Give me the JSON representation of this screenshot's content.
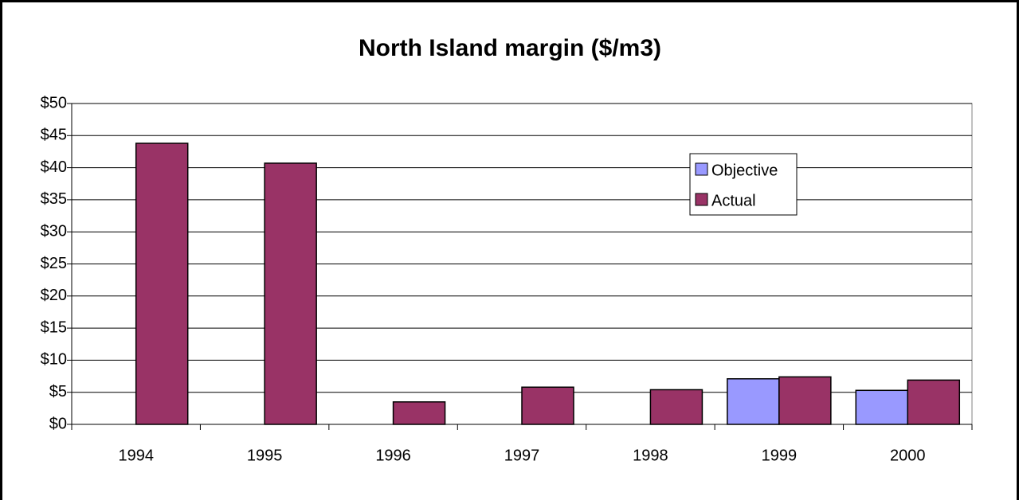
{
  "chart_data": {
    "type": "bar",
    "title": "North Island margin ($/m3)",
    "categories": [
      "1994",
      "1995",
      "1996",
      "1997",
      "1998",
      "1999",
      "2000"
    ],
    "series": [
      {
        "name": "Objective",
        "color": "#9999ff",
        "values": [
          null,
          null,
          null,
          null,
          null,
          7.1,
          5.3
        ]
      },
      {
        "name": "Actual",
        "color": "#993366",
        "values": [
          43.8,
          40.7,
          3.5,
          5.8,
          5.4,
          7.4,
          6.9
        ]
      }
    ],
    "ylim": [
      0,
      50
    ],
    "yticks": [
      {
        "value": 0,
        "label": "$0"
      },
      {
        "value": 5,
        "label": "$5"
      },
      {
        "value": 10,
        "label": "$10"
      },
      {
        "value": 15,
        "label": "$15"
      },
      {
        "value": 20,
        "label": "$20"
      },
      {
        "value": 25,
        "label": "$25"
      },
      {
        "value": 30,
        "label": "$30"
      },
      {
        "value": 35,
        "label": "$35"
      },
      {
        "value": 40,
        "label": "$40"
      },
      {
        "value": 45,
        "label": "$45"
      },
      {
        "value": 50,
        "label": "$50"
      }
    ],
    "grid": true,
    "legend": "upper right"
  }
}
